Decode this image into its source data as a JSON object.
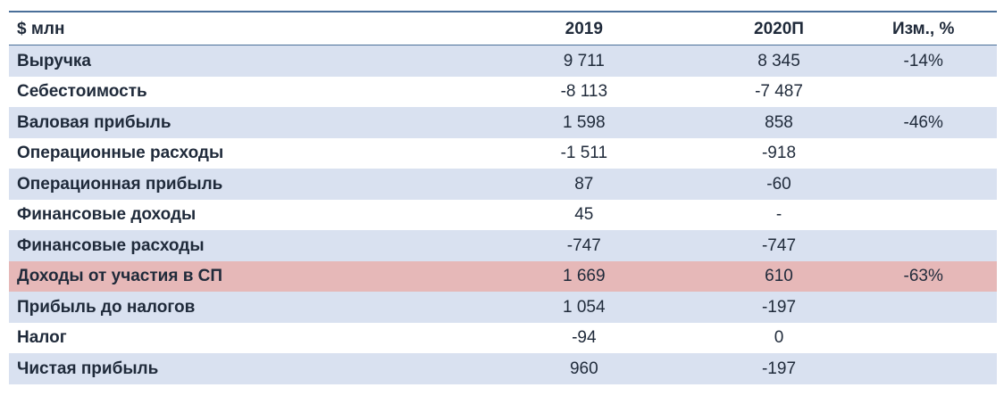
{
  "table": {
    "headers": {
      "label": "$ млн",
      "y2019": "2019",
      "y2020": "2020П",
      "change": "Изм., %"
    },
    "rows": [
      {
        "label": "Выручка",
        "y2019": "9 711",
        "y2020": "8 345",
        "change": "-14%"
      },
      {
        "label": "Себестоимость",
        "y2019": "-8 113",
        "y2020": "-7 487",
        "change": ""
      },
      {
        "label": "Валовая прибыль",
        "y2019": "1 598",
        "y2020": "858",
        "change": "-46%"
      },
      {
        "label": "Операционные расходы",
        "y2019": "-1 511",
        "y2020": "-918",
        "change": ""
      },
      {
        "label": "Операционная прибыль",
        "y2019": "87",
        "y2020": "-60",
        "change": ""
      },
      {
        "label": "Финансовые доходы",
        "y2019": "45",
        "y2020": "-",
        "change": ""
      },
      {
        "label": "Финансовые расходы",
        "y2019": "-747",
        "y2020": "-747",
        "change": ""
      },
      {
        "label": "Доходы от участия в СП",
        "y2019": "1 669",
        "y2020": "610",
        "change": "-63%"
      },
      {
        "label": "Прибыль до налогов",
        "y2019": "1 054",
        "y2020": "-197",
        "change": ""
      },
      {
        "label": "Налог",
        "y2019": "-94",
        "y2020": "0",
        "change": ""
      },
      {
        "label": "Чистая прибыль",
        "y2019": "960",
        "y2020": "-197",
        "change": ""
      }
    ]
  },
  "colors": {
    "rule": "#4a6f99",
    "shaded_row": "#d9e1f0",
    "highlight_row": "#e6b8b8",
    "text": "#1f2a3a"
  }
}
